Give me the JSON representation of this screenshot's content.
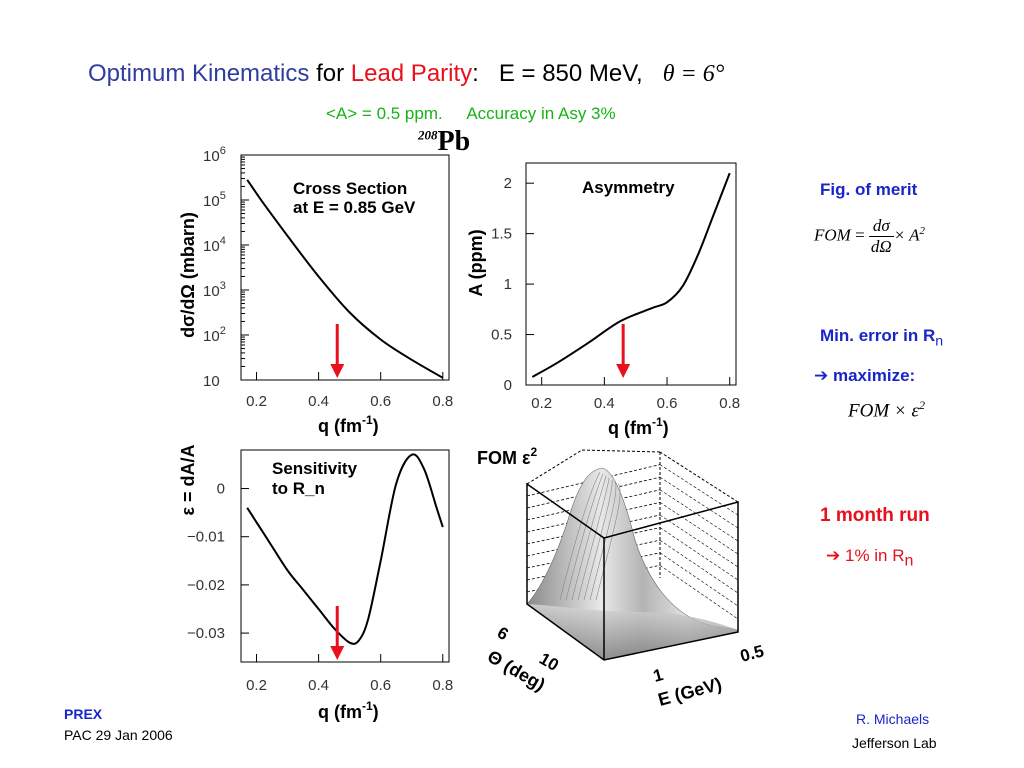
{
  "header": {
    "title_part1": "Optimum  Kinematics",
    "title_part2": "for",
    "title_part3": "Lead  Parity",
    "title_part4": ":",
    "title_part5": "E = 850 MeV,",
    "theta_eq": "θ = 6°",
    "subtitle_part1": "<A> = 0.5 ppm.",
    "subtitle_part2": "Accuracy in Asy 3%",
    "nucleus_mass": "208",
    "nucleus_symbol": "Pb"
  },
  "side": {
    "fig_of_merit": "Fig. of merit",
    "fom_lhs": "FOM",
    "fom_eq": "=",
    "fom_num": "dσ",
    "fom_den": "dΩ",
    "fom_times": "× A",
    "fom_exp": "2",
    "min_error": "Min. error in R",
    "min_error_sub": "n",
    "arrow1": "➔",
    "maximize": "maximize:",
    "fom_eps": "FOM × ε",
    "fom_eps_exp": "2",
    "run": "1 month run",
    "arrow2": "➔",
    "run_result": "1%  in R",
    "run_result_sub": "n"
  },
  "footer": {
    "prex": "PREX",
    "pac": "PAC 29   Jan 2006",
    "author": "R.  Michaels",
    "lab": "Jefferson  Lab"
  },
  "colors": {
    "title_blue": "#2f3d9e",
    "highlight_red": "#e8101c",
    "green": "#17b317",
    "side_blue": "#1a25c8"
  },
  "chart_data": [
    {
      "type": "line",
      "title": "Cross Section at E = 0.85 GeV",
      "title_line1": "Cross Section",
      "title_line2": "at E = 0.85 GeV",
      "ylabel": "dσ/dΩ  (mbarn)",
      "xlabel": "q  (fm",
      "xlabel_exp": "-1",
      "xlabel_close": ")",
      "xlim": [
        0.15,
        0.82
      ],
      "ylim_log10": [
        1,
        6
      ],
      "yscale": "log",
      "yticks": [
        {
          "m": "10",
          "e": ""
        },
        {
          "m": "10",
          "e": "2"
        },
        {
          "m": "10",
          "e": "3"
        },
        {
          "m": "10",
          "e": "4"
        },
        {
          "m": "10",
          "e": "5"
        },
        {
          "m": "10",
          "e": "6"
        }
      ],
      "xticks": [
        "0.2",
        "0.4",
        "0.6",
        "0.8"
      ],
      "x": [
        0.17,
        0.22,
        0.3,
        0.4,
        0.5,
        0.6,
        0.7,
        0.8
      ],
      "y_log10": [
        5.45,
        4.95,
        4.2,
        3.3,
        2.5,
        1.9,
        1.45,
        1.05
      ],
      "marker_x": 0.46
    },
    {
      "type": "line",
      "title": "Asymmetry",
      "ylabel": "A  (ppm)",
      "xlabel": "q  (fm",
      "xlabel_exp": "-1",
      "xlabel_close": ")",
      "xlim": [
        0.15,
        0.82
      ],
      "ylim": [
        0,
        2.2
      ],
      "yticks": [
        "0",
        "0.5",
        "1",
        "1.5",
        "2"
      ],
      "xticks": [
        "0.2",
        "0.4",
        "0.6",
        "0.8"
      ],
      "x": [
        0.17,
        0.25,
        0.35,
        0.45,
        0.55,
        0.6,
        0.65,
        0.7,
        0.75,
        0.8
      ],
      "y": [
        0.08,
        0.22,
        0.42,
        0.63,
        0.76,
        0.82,
        0.98,
        1.3,
        1.7,
        2.1
      ],
      "marker_x": 0.46
    },
    {
      "type": "line",
      "title": "Sensitivity to R_n",
      "title_line1": "Sensitivity",
      "title_line2": "to R_n",
      "ylabel": "ε = dA/A",
      "xlabel": "q  (fm",
      "xlabel_exp": "-1",
      "xlabel_close": ")",
      "xlim": [
        0.15,
        0.82
      ],
      "ylim": [
        -0.036,
        0.008
      ],
      "yticks": [
        "0",
        "−0.01",
        "−0.02",
        "−0.03"
      ],
      "xticks": [
        "0.2",
        "0.4",
        "0.6",
        "0.8"
      ],
      "x": [
        0.17,
        0.2,
        0.25,
        0.3,
        0.35,
        0.4,
        0.45,
        0.5,
        0.53,
        0.56,
        0.6,
        0.65,
        0.7,
        0.74,
        0.78,
        0.8
      ],
      "y": [
        -0.004,
        -0.007,
        -0.012,
        -0.017,
        -0.021,
        -0.025,
        -0.029,
        -0.032,
        -0.0315,
        -0.027,
        -0.015,
        0.001,
        0.007,
        0.004,
        -0.004,
        -0.008
      ],
      "marker_x": 0.46
    },
    {
      "type": "surface",
      "title": "FOM ε",
      "title_exp": "2",
      "xlabel": "E (GeV)",
      "ylabel": "Θ (deg)",
      "xticks": [
        "1",
        "0.5"
      ],
      "yticks": [
        "6",
        "10"
      ]
    }
  ]
}
